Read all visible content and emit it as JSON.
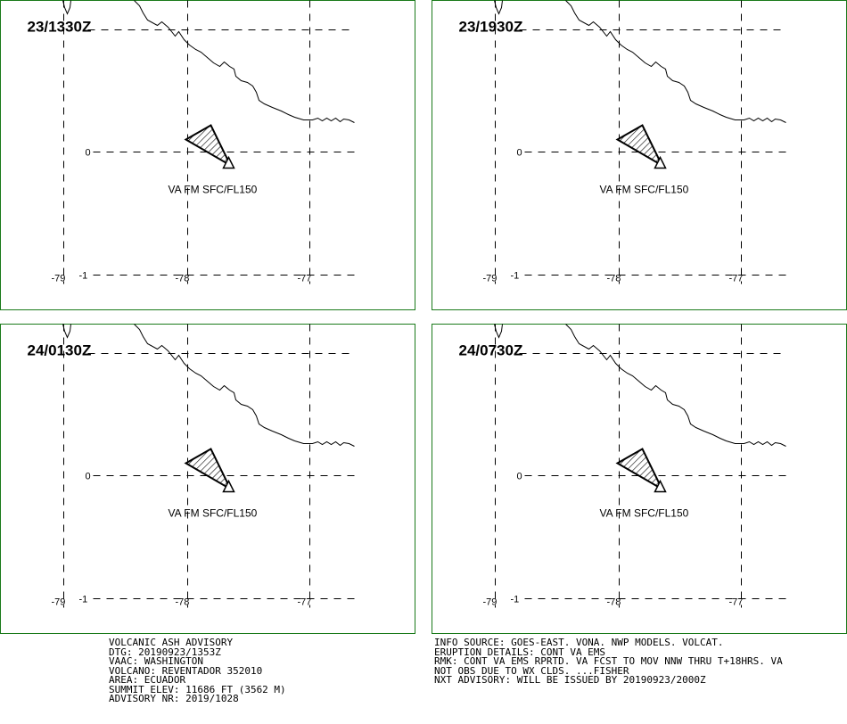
{
  "advisory": {
    "left_lines": [
      "VOLCANIC ASH ADVISORY",
      "DTG: 20190923/1353Z",
      "VAAC: WASHINGTON",
      "VOLCANO: REVENTADOR 352010",
      "AREA: ECUADOR",
      "SUMMIT ELEV: 11686 FT (3562 M)",
      "ADVISORY NR: 2019/1028"
    ],
    "right_lines": [
      "INFO SOURCE: GOES-EAST. VONA. NWP MODELS. VOLCAT.",
      "ERUPTION DETAILS: CONT VA EMS",
      "RMK: CONT VA EMS RPRTD. VA FCST TO MOV NNW THRU T+18HRS. VA",
      "NOT OBS DUE TO WX CLDS. ...FISHER",
      "NXT ADVISORY: WILL BE ISSUED BY 20190923/2000Z"
    ]
  },
  "panels": [
    {
      "time": "23/1330Z",
      "plume_label": "VA FM SFC/FL150"
    },
    {
      "time": "23/1930Z",
      "plume_label": "VA FM SFC/FL150"
    },
    {
      "time": "24/0130Z",
      "plume_label": "VA FM SFC/FL150"
    },
    {
      "time": "24/0730Z",
      "plume_label": "VA FM SFC/FL150"
    }
  ],
  "grid": {
    "longitudes": [
      "-79",
      "-78",
      "-77"
    ],
    "latitudes": [
      "0",
      "-1"
    ]
  },
  "colors": {
    "panel_border": "#1a7a1a",
    "ink": "#000000",
    "background": "#ffffff"
  },
  "icons": {
    "volcano": "volcano-triangle-icon",
    "ash_area": "hatched-polygon"
  }
}
